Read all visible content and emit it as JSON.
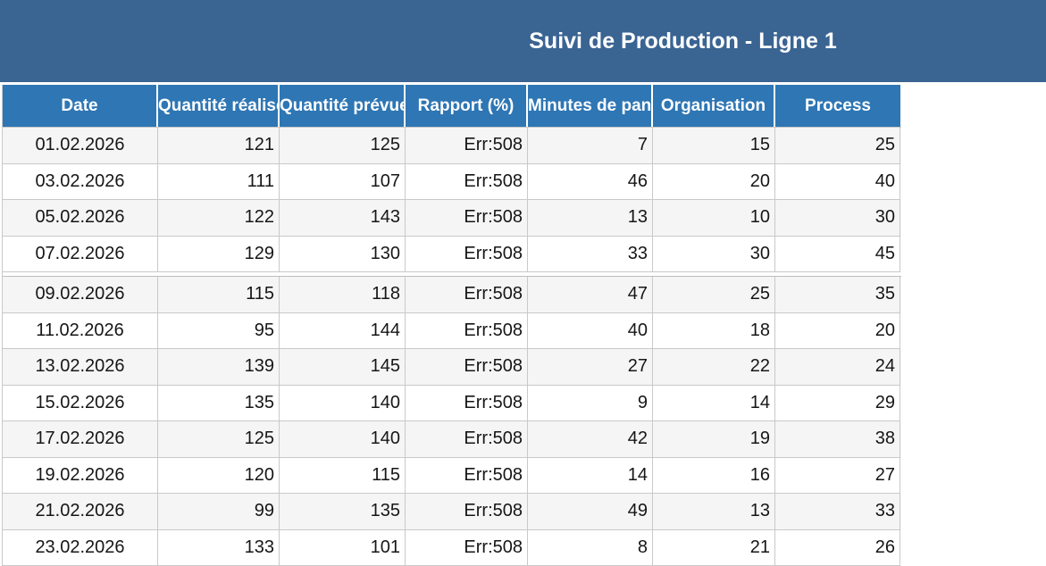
{
  "title": "Suivi de Production - Ligne 1",
  "colors": {
    "banner_bg": "#3A6492",
    "header_bg": "#2E76B4",
    "row_alt_bg": "#F5F5F5",
    "grid_border": "#C9C9C9",
    "title_color": "#FFFFFF",
    "header_text": "#FFFFFF",
    "cell_text": "#161616"
  },
  "table": {
    "columns": [
      {
        "key": "date",
        "label": "Date"
      },
      {
        "key": "quantite-realisee",
        "label": "Quantité réalisée"
      },
      {
        "key": "quantite-prevue",
        "label": "Quantité prévue"
      },
      {
        "key": "rapport",
        "label": "Rapport (%)"
      },
      {
        "key": "minutes-de-panne",
        "label": "Minutes de panne"
      },
      {
        "key": "organisation",
        "label": "Organisation"
      },
      {
        "key": "process",
        "label": "Process"
      }
    ],
    "rows": [
      [
        "01.02.2026",
        "121",
        "125",
        "Err:508",
        "7",
        "15",
        "25"
      ],
      [
        "03.02.2026",
        "111",
        "107",
        "Err:508",
        "46",
        "20",
        "40"
      ],
      [
        "05.02.2026",
        "122",
        "143",
        "Err:508",
        "13",
        "10",
        "30"
      ],
      [
        "07.02.2026",
        "129",
        "130",
        "Err:508",
        "33",
        "30",
        "45"
      ],
      [
        "09.02.2026",
        "115",
        "118",
        "Err:508",
        "47",
        "25",
        "35"
      ],
      [
        "11.02.2026",
        "95",
        "144",
        "Err:508",
        "40",
        "18",
        "20"
      ],
      [
        "13.02.2026",
        "139",
        "145",
        "Err:508",
        "27",
        "22",
        "24"
      ],
      [
        "15.02.2026",
        "135",
        "140",
        "Err:508",
        "9",
        "14",
        "29"
      ],
      [
        "17.02.2026",
        "125",
        "140",
        "Err:508",
        "42",
        "19",
        "38"
      ],
      [
        "19.02.2026",
        "120",
        "115",
        "Err:508",
        "14",
        "16",
        "27"
      ],
      [
        "21.02.2026",
        "99",
        "135",
        "Err:508",
        "49",
        "13",
        "33"
      ],
      [
        "23.02.2026",
        "133",
        "101",
        "Err:508",
        "8",
        "21",
        "26"
      ]
    ]
  }
}
